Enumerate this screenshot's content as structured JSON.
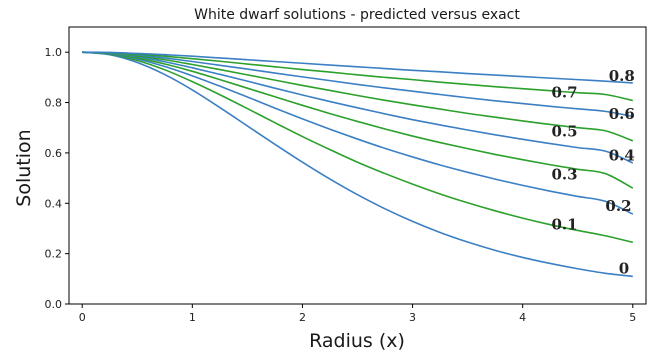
{
  "chart_data": {
    "type": "line",
    "title": "White dwarf solutions - predicted versus exact",
    "xlabel": "Radius (x)",
    "ylabel": "Solution",
    "xlim": [
      -0.12,
      5.12
    ],
    "ylim": [
      0.0,
      1.1
    ],
    "xticks": [
      "0",
      "1",
      "2",
      "3",
      "4",
      "5"
    ],
    "yticks": [
      "0.0",
      "0.2",
      "0.4",
      "0.6",
      "0.8",
      "1.0"
    ],
    "grid": false,
    "colors": {
      "blue": "#3b7fc4",
      "green": "#2ca02c"
    },
    "x": [
      0,
      0.25,
      0.5,
      0.75,
      1,
      1.25,
      1.5,
      1.75,
      2,
      2.25,
      2.5,
      2.75,
      3,
      3.25,
      3.5,
      3.75,
      4,
      4.25,
      4.5,
      4.75,
      5
    ],
    "series": [
      {
        "label": "0",
        "color": "#3b7fc4",
        "values": [
          1.0,
          0.99,
          0.959,
          0.911,
          0.85,
          0.78,
          0.707,
          0.634,
          0.563,
          0.496,
          0.434,
          0.378,
          0.328,
          0.284,
          0.246,
          0.213,
          0.185,
          0.161,
          0.14,
          0.122,
          0.11
        ]
      },
      {
        "label": "0.1",
        "color": "#2ca02c",
        "values": [
          1.0,
          0.992,
          0.967,
          0.93,
          0.883,
          0.831,
          0.776,
          0.72,
          0.665,
          0.613,
          0.563,
          0.518,
          0.476,
          0.437,
          0.402,
          0.37,
          0.341,
          0.315,
          0.292,
          0.271,
          0.245
        ]
      },
      {
        "label": "0.2",
        "color": "#3b7fc4",
        "values": [
          1.0,
          0.993,
          0.973,
          0.943,
          0.906,
          0.865,
          0.822,
          0.778,
          0.735,
          0.694,
          0.655,
          0.618,
          0.584,
          0.552,
          0.523,
          0.496,
          0.471,
          0.448,
          0.427,
          0.408,
          0.357
        ]
      },
      {
        "label": "0.3",
        "color": "#2ca02c",
        "values": [
          1.0,
          0.994,
          0.977,
          0.953,
          0.924,
          0.891,
          0.857,
          0.823,
          0.789,
          0.756,
          0.725,
          0.695,
          0.667,
          0.641,
          0.617,
          0.594,
          0.573,
          0.553,
          0.535,
          0.518,
          0.46
        ]
      },
      {
        "label": "0.4",
        "color": "#3b7fc4",
        "values": [
          1.0,
          0.995,
          0.982,
          0.962,
          0.938,
          0.912,
          0.885,
          0.857,
          0.83,
          0.804,
          0.779,
          0.755,
          0.732,
          0.711,
          0.691,
          0.672,
          0.654,
          0.637,
          0.621,
          0.607,
          0.56
        ]
      },
      {
        "label": "0.5",
        "color": "#2ca02c",
        "values": [
          1.0,
          0.996,
          0.985,
          0.97,
          0.951,
          0.931,
          0.91,
          0.889,
          0.868,
          0.848,
          0.828,
          0.809,
          0.791,
          0.774,
          0.757,
          0.742,
          0.727,
          0.713,
          0.7,
          0.688,
          0.648
        ]
      },
      {
        "label": "0.6",
        "color": "#3b7fc4",
        "values": [
          1.0,
          0.997,
          0.989,
          0.977,
          0.963,
          0.948,
          0.933,
          0.917,
          0.902,
          0.887,
          0.872,
          0.858,
          0.845,
          0.832,
          0.819,
          0.807,
          0.796,
          0.785,
          0.775,
          0.765,
          0.745
        ]
      },
      {
        "label": "0.7",
        "color": "#2ca02c",
        "values": [
          1.0,
          0.998,
          0.992,
          0.984,
          0.974,
          0.964,
          0.953,
          0.942,
          0.931,
          0.921,
          0.91,
          0.9,
          0.891,
          0.881,
          0.872,
          0.863,
          0.855,
          0.847,
          0.839,
          0.832,
          0.808
        ]
      },
      {
        "label": "0.8",
        "color": "#3b7fc4",
        "values": [
          1.0,
          0.999,
          0.995,
          0.99,
          0.984,
          0.977,
          0.97,
          0.963,
          0.956,
          0.949,
          0.942,
          0.935,
          0.928,
          0.922,
          0.915,
          0.909,
          0.903,
          0.897,
          0.891,
          0.885,
          0.878
        ]
      }
    ],
    "curve_labels": [
      {
        "text": "0.8",
        "x": 4.9,
        "y": 0.905
      },
      {
        "text": "0.7",
        "x": 4.38,
        "y": 0.84
      },
      {
        "text": "0.6",
        "x": 4.9,
        "y": 0.755
      },
      {
        "text": "0.5",
        "x": 4.38,
        "y": 0.685
      },
      {
        "text": "0.4",
        "x": 4.9,
        "y": 0.59
      },
      {
        "text": "0.3",
        "x": 4.38,
        "y": 0.515
      },
      {
        "text": "0.2",
        "x": 4.87,
        "y": 0.39
      },
      {
        "text": "0.1",
        "x": 4.38,
        "y": 0.315
      },
      {
        "text": "0",
        "x": 4.92,
        "y": 0.14
      }
    ]
  }
}
